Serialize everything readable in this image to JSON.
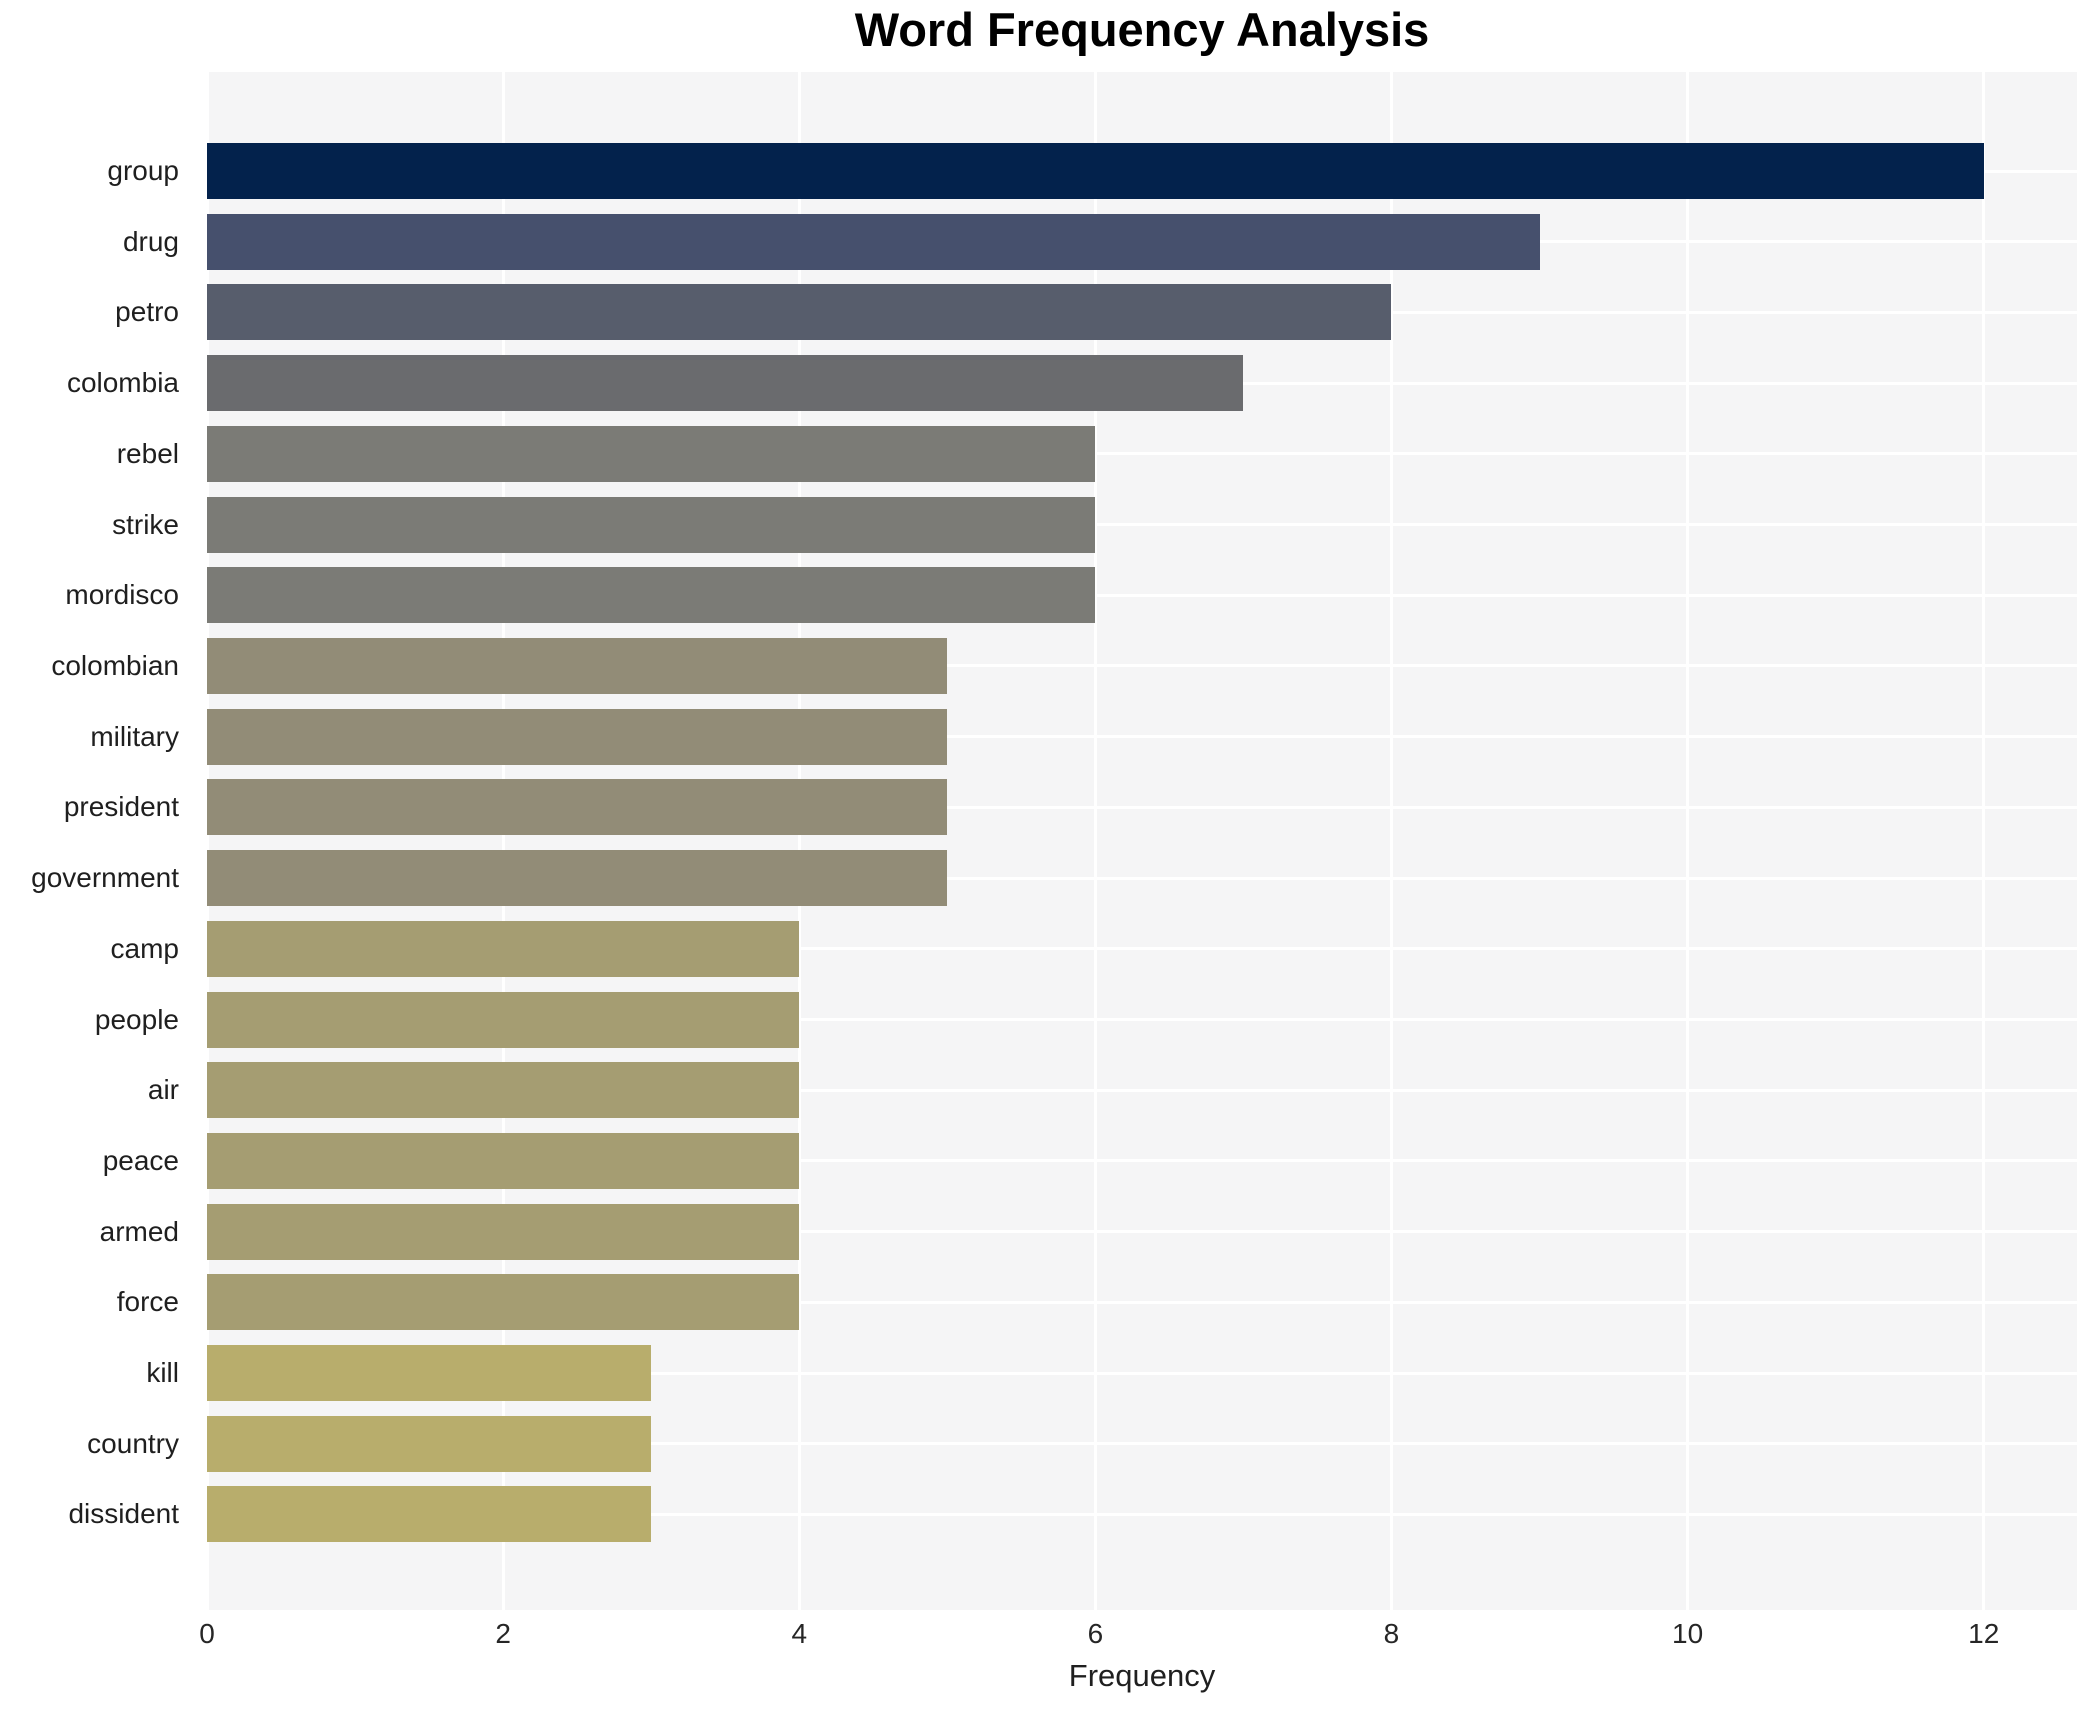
{
  "chart_data": {
    "type": "bar",
    "orientation": "horizontal",
    "title": "Word Frequency Analysis",
    "xlabel": "Frequency",
    "ylabel": "",
    "categories": [
      "group",
      "drug",
      "petro",
      "colombia",
      "rebel",
      "strike",
      "mordisco",
      "colombian",
      "military",
      "president",
      "government",
      "camp",
      "people",
      "air",
      "peace",
      "armed",
      "force",
      "kill",
      "country",
      "dissident"
    ],
    "values": [
      12,
      9,
      8,
      7,
      6,
      6,
      6,
      5,
      5,
      5,
      5,
      4,
      4,
      4,
      4,
      4,
      4,
      3,
      3,
      3
    ],
    "bar_colors": [
      "#03224c",
      "#46506d",
      "#575d6c",
      "#6a6b6e",
      "#7b7b76",
      "#7b7b76",
      "#7b7b76",
      "#928c77",
      "#928c77",
      "#928c77",
      "#928c77",
      "#a59d72",
      "#a59d72",
      "#a59d72",
      "#a59d72",
      "#a59d72",
      "#a59d72",
      "#b8ad6c",
      "#b8ad6c",
      "#b8ad6c"
    ],
    "xticks": [
      0,
      2,
      4,
      6,
      8,
      10,
      12
    ],
    "xlim": [
      0,
      12.63
    ],
    "grid": true,
    "legend": "none",
    "plot_background": "#f5f5f6",
    "grid_color": "#ffffff"
  }
}
